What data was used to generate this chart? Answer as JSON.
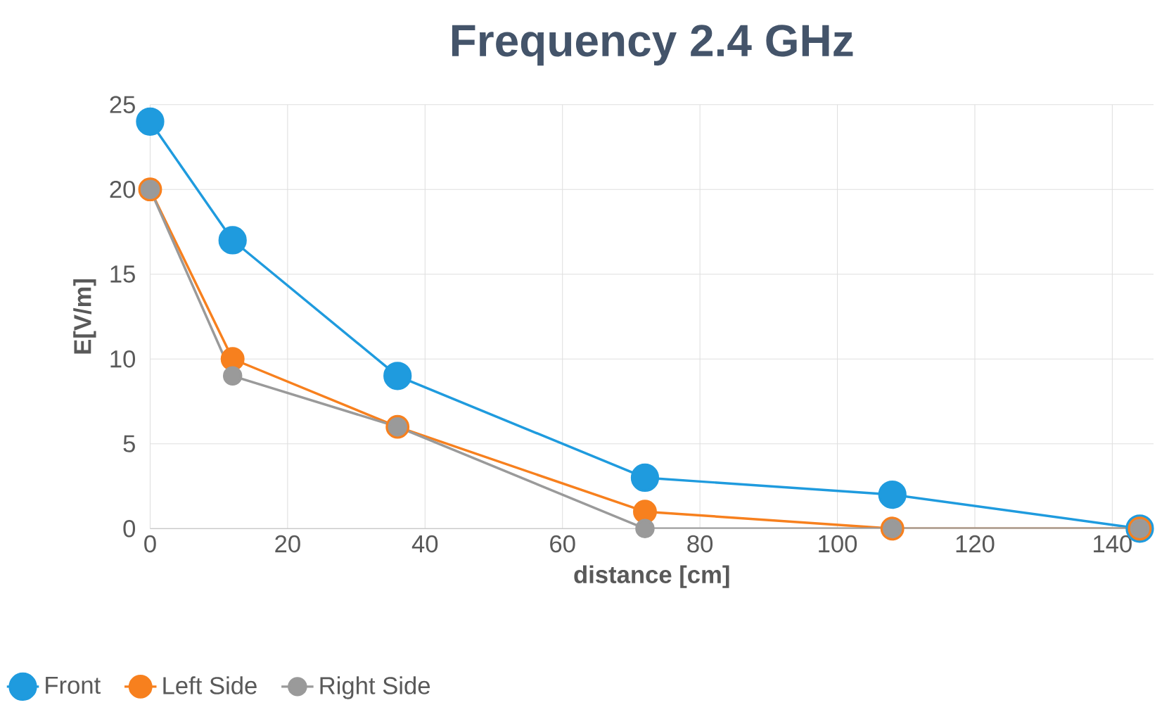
{
  "chart_data": {
    "type": "line",
    "title": "Frequency 2.4 GHz",
    "xlabel": "distance [cm]",
    "ylabel": "E[V/m]",
    "x": [
      0,
      12,
      36,
      72,
      108,
      144
    ],
    "series": [
      {
        "name": "Front",
        "color": "#1f9bde",
        "values": [
          24,
          17,
          9,
          3,
          2,
          0
        ]
      },
      {
        "name": "Left Side",
        "color": "#f7801e",
        "values": [
          20,
          10,
          6,
          1,
          0,
          0
        ]
      },
      {
        "name": "Right Side",
        "color": "#9a9a9a",
        "values": [
          20,
          9,
          6,
          0,
          0,
          0
        ]
      }
    ],
    "xlim": [
      0,
      146
    ],
    "ylim": [
      0,
      25
    ],
    "xticks": [
      0,
      20,
      40,
      60,
      80,
      100,
      120,
      140
    ],
    "yticks": [
      0,
      5,
      10,
      15,
      20,
      25
    ],
    "grid": true,
    "legend": "bottom left",
    "marker": "circle",
    "line_style": "solid"
  }
}
